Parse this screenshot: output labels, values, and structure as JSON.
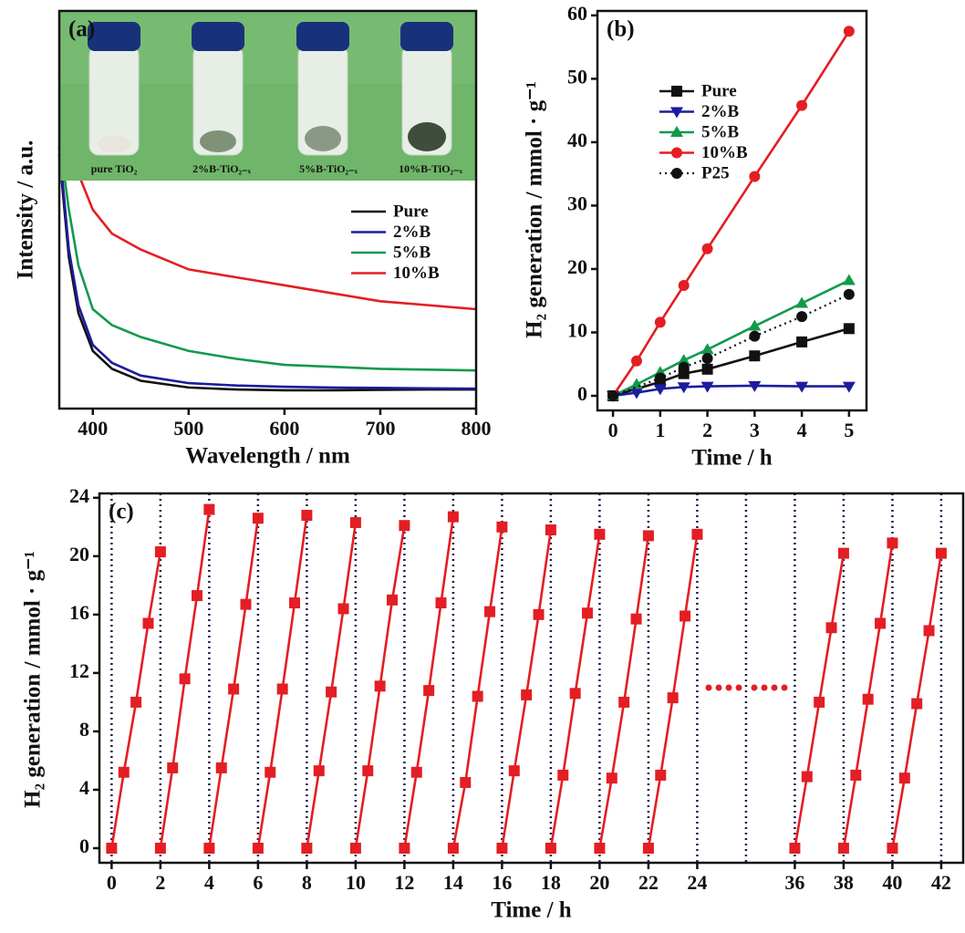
{
  "chart_data": [
    {
      "type": "line",
      "panel_label": "(a)",
      "xlabel": "Wavelength / nm",
      "ylabel": "Intensity / a.u.",
      "x": [
        365,
        375,
        385,
        400,
        420,
        450,
        500,
        550,
        600,
        650,
        700,
        750,
        800
      ],
      "xlim": [
        365,
        800
      ],
      "xticks": [
        400,
        500,
        600,
        700,
        800
      ],
      "ylim": [
        0,
        100
      ],
      "legend": "center right",
      "photo_labels": [
        "pure TiO₂",
        "2%B-TiO₂₋ₓ",
        "5%B-TiO₂₋ₓ",
        "10%B-TiO₂₋ₓ"
      ],
      "series": [
        {
          "name": "Pure",
          "color": "#111111",
          "values": [
            64,
            38,
            24,
            14.5,
            10,
            7,
            5.3,
            4.8,
            4.6,
            4.6,
            4.7,
            4.8,
            4.8
          ]
        },
        {
          "name": "2%B",
          "color": "#1c1c9e",
          "values": [
            66,
            40,
            26,
            16,
            11.5,
            8.3,
            6.4,
            5.8,
            5.5,
            5.3,
            5.2,
            5.1,
            5
          ]
        },
        {
          "name": "5%B",
          "color": "#119a4b",
          "values": [
            68,
            50,
            36,
            25,
            21,
            18,
            14.5,
            12.5,
            11,
            10.5,
            10,
            9.8,
            9.6
          ]
        },
        {
          "name": "10%B",
          "color": "#e31e24",
          "values": [
            83,
            70,
            59,
            50,
            44,
            40,
            35,
            33,
            31,
            29,
            27,
            26,
            25
          ]
        }
      ]
    },
    {
      "type": "line",
      "panel_label": "(b)",
      "xlabel": "Time / h",
      "ylabel": "H₂ generation / mmol · g⁻¹",
      "xlim": [
        -0.33,
        5.37
      ],
      "xticks": [
        0,
        1,
        2,
        3,
        4,
        5
      ],
      "ylim": [
        -2.3,
        60.7
      ],
      "yticks": [
        0,
        10,
        20,
        30,
        40,
        50,
        60
      ],
      "legend": "upper left",
      "series": [
        {
          "name": "Pure",
          "color": "#111111",
          "marker": "square",
          "x": [
            0,
            1,
            1.5,
            2,
            3,
            4,
            5
          ],
          "values": [
            0,
            2.2,
            3.5,
            4.2,
            6.3,
            8.5,
            10.6
          ]
        },
        {
          "name": "2%B",
          "color": "#1c1c9e",
          "marker": "triangle-down",
          "x": [
            0,
            0.5,
            1,
            1.5,
            2,
            3,
            4,
            5
          ],
          "values": [
            0,
            0.5,
            1.1,
            1.4,
            1.5,
            1.6,
            1.5,
            1.5
          ]
        },
        {
          "name": "5%B",
          "color": "#119a4b",
          "marker": "triangle-up",
          "x": [
            0,
            0.5,
            1,
            1.5,
            2,
            3,
            4,
            5
          ],
          "values": [
            0,
            1.8,
            3.7,
            5.6,
            7.3,
            11,
            14.6,
            18.2
          ]
        },
        {
          "name": "10%B",
          "color": "#e31e24",
          "marker": "circle",
          "x": [
            0,
            0.5,
            1,
            1.5,
            2,
            3,
            4,
            5
          ],
          "values": [
            0,
            5.5,
            11.6,
            17.4,
            23.2,
            34.6,
            45.8,
            57.5
          ]
        },
        {
          "name": "P25",
          "color": "#111111",
          "marker": "circle",
          "line_style": "dotted",
          "x": [
            0,
            1,
            1.5,
            2,
            3,
            4,
            5
          ],
          "values": [
            0,
            2.8,
            4.5,
            5.9,
            9.4,
            12.5,
            16
          ]
        }
      ]
    },
    {
      "type": "line",
      "panel_label": "(c)",
      "xlabel": "Time / h",
      "ylabel": "H₂ generation / mmol · g⁻¹",
      "xlim": [
        -0.5,
        42.9
      ],
      "xbreak": [
        26,
        34
      ],
      "xticks": [
        0,
        2,
        4,
        6,
        8,
        10,
        12,
        14,
        16,
        18,
        20,
        22,
        24,
        36,
        38,
        40,
        42
      ],
      "ylim": [
        -1,
        24.3
      ],
      "yticks": [
        0,
        4,
        8,
        12,
        16,
        20,
        24
      ],
      "grid": true,
      "marker": "square",
      "series": [
        {
          "color": "#e31e24",
          "x": [
            0,
            0.5,
            1,
            1.5,
            2
          ],
          "values": [
            0,
            5.2,
            10,
            15.4,
            20.3
          ]
        },
        {
          "color": "#e31e24",
          "x": [
            2,
            2.5,
            3,
            3.5,
            4
          ],
          "values": [
            0,
            5.5,
            11.6,
            17.3,
            23.2
          ]
        },
        {
          "color": "#e31e24",
          "x": [
            4,
            4.5,
            5,
            5.5,
            6
          ],
          "values": [
            0,
            5.5,
            10.9,
            16.7,
            22.6
          ]
        },
        {
          "color": "#e31e24",
          "x": [
            6,
            6.5,
            7,
            7.5,
            8
          ],
          "values": [
            0,
            5.2,
            10.9,
            16.8,
            22.8
          ]
        },
        {
          "color": "#e31e24",
          "x": [
            8,
            8.5,
            9,
            9.5,
            10
          ],
          "values": [
            0,
            5.3,
            10.7,
            16.4,
            22.3
          ]
        },
        {
          "color": "#e31e24",
          "x": [
            10,
            10.5,
            11,
            11.5,
            12
          ],
          "values": [
            0,
            5.3,
            11.1,
            17,
            22.1
          ]
        },
        {
          "color": "#e31e24",
          "x": [
            12,
            12.5,
            13,
            13.5,
            14
          ],
          "values": [
            0,
            5.2,
            10.8,
            16.8,
            22.7
          ]
        },
        {
          "color": "#e31e24",
          "x": [
            14,
            14.5,
            15,
            15.5,
            16
          ],
          "values": [
            0,
            4.5,
            10.4,
            16.2,
            22
          ]
        },
        {
          "color": "#e31e24",
          "x": [
            16,
            16.5,
            17,
            17.5,
            18
          ],
          "values": [
            0,
            5.3,
            10.5,
            16,
            21.8
          ]
        },
        {
          "color": "#e31e24",
          "x": [
            18,
            18.5,
            19,
            19.5,
            20
          ],
          "values": [
            0,
            5,
            10.6,
            16.1,
            21.5
          ]
        },
        {
          "color": "#e31e24",
          "x": [
            20,
            20.5,
            21,
            21.5,
            22
          ],
          "values": [
            0,
            4.8,
            10,
            15.7,
            21.4
          ]
        },
        {
          "color": "#e31e24",
          "x": [
            22,
            22.5,
            23,
            23.5,
            24
          ],
          "values": [
            0,
            5,
            10.3,
            15.9,
            21.5
          ]
        },
        {
          "color": "#e31e24",
          "x": [
            36,
            36.5,
            37,
            37.5,
            38
          ],
          "values": [
            0,
            4.9,
            10,
            15.1,
            20.2
          ]
        },
        {
          "color": "#e31e24",
          "x": [
            38,
            38.5,
            39,
            39.5,
            40
          ],
          "values": [
            0,
            5,
            10.2,
            15.4,
            20.9
          ]
        },
        {
          "color": "#e31e24",
          "x": [
            40,
            40.5,
            41,
            41.5,
            42
          ],
          "values": [
            0,
            4.8,
            9.9,
            14.9,
            20.2
          ]
        }
      ]
    }
  ]
}
